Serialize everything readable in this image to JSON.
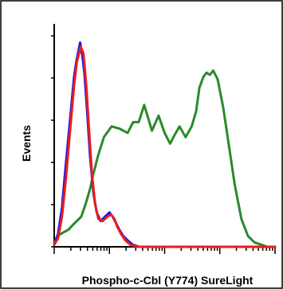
{
  "chart_data": {
    "type": "line",
    "title": "",
    "xlabel": "Phospho-c-Cbl (Y774) SureLight",
    "ylabel": "Events",
    "xscale": "log",
    "xlim": [
      0,
      4
    ],
    "ylim": [
      0,
      100
    ],
    "grid": false,
    "legend": "none",
    "series": [
      {
        "color": "#2a8a2a",
        "x": [
          0.0,
          0.06,
          0.12,
          0.19,
          0.26,
          0.33,
          0.41,
          0.49,
          0.57,
          0.65,
          0.71,
          0.79,
          0.9,
          1.04,
          1.18,
          1.33,
          1.43,
          1.53,
          1.63,
          1.77,
          1.89,
          2.0,
          2.1,
          2.18,
          2.27,
          2.38,
          2.49,
          2.57,
          2.63,
          2.7,
          2.76,
          2.82,
          2.88,
          2.96,
          3.06,
          3.16,
          3.27,
          3.39,
          3.51,
          3.63,
          3.75,
          3.86,
          4.0
        ],
        "values": [
          2,
          5,
          6,
          7,
          8,
          10,
          12,
          14,
          20,
          27,
          34,
          42,
          51,
          56,
          55,
          53,
          58,
          58,
          66,
          54,
          61,
          53,
          48,
          52,
          56,
          51,
          56,
          63,
          74,
          79,
          81,
          80,
          82,
          78,
          65,
          48,
          29,
          13,
          5,
          2,
          1,
          0,
          0
        ]
      },
      {
        "color": "#1a1aee",
        "x": [
          0.0,
          0.07,
          0.14,
          0.21,
          0.29,
          0.36,
          0.4,
          0.47,
          0.51,
          0.55,
          0.6,
          0.65,
          0.71,
          0.77,
          0.84,
          0.92,
          1.0,
          1.06,
          1.12,
          1.18,
          1.25,
          1.33,
          1.42,
          1.54,
          1.65,
          1.78,
          2.0,
          2.5,
          3.0,
          3.5,
          4.0
        ],
        "values": [
          1,
          6,
          18,
          38,
          60,
          79,
          86,
          95,
          89,
          80,
          62,
          42,
          25,
          16,
          12,
          14,
          16,
          14,
          11,
          8,
          5,
          3,
          1,
          0,
          0,
          0,
          0,
          0,
          0,
          0,
          0
        ]
      },
      {
        "color": "#ee1a1a",
        "x": [
          0.0,
          0.07,
          0.14,
          0.21,
          0.29,
          0.36,
          0.41,
          0.48,
          0.53,
          0.58,
          0.63,
          0.68,
          0.74,
          0.8,
          0.88,
          0.96,
          1.03,
          1.09,
          1.15,
          1.21,
          1.29,
          1.38,
          1.5,
          1.65,
          1.8,
          2.0,
          2.5,
          3.0,
          3.5,
          4.0
        ],
        "values": [
          1,
          4,
          14,
          31,
          55,
          75,
          86,
          93,
          90,
          75,
          55,
          35,
          20,
          13,
          12,
          14,
          15,
          13,
          9,
          6,
          3,
          1,
          0,
          0,
          0,
          0,
          0,
          0,
          0,
          0
        ]
      }
    ]
  }
}
